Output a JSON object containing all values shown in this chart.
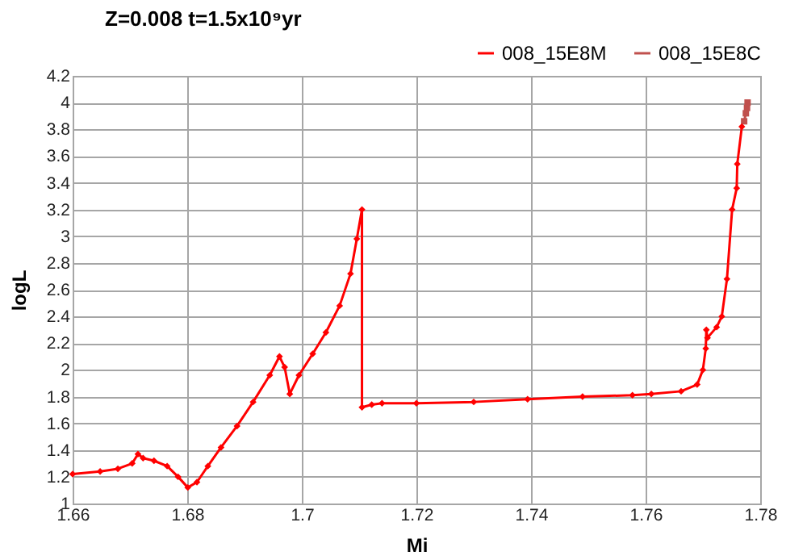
{
  "chart_data": {
    "type": "line",
    "title": "Z=0.008    t=1.5x10⁹yr",
    "xlabel": "Mi",
    "ylabel": "logL",
    "xlim": [
      1.66,
      1.78
    ],
    "xticks": [
      1.66,
      1.68,
      1.7,
      1.72,
      1.74,
      1.76,
      1.78
    ],
    "ylim": [
      1,
      4.2
    ],
    "yticks": [
      1,
      1.2,
      1.4,
      1.6,
      1.8,
      2,
      2.2,
      2.4,
      2.6,
      2.8,
      3,
      3.2,
      3.4,
      3.6,
      3.8,
      4,
      4.2
    ],
    "grid": true,
    "legend": "top right",
    "series": [
      {
        "name": "008_15E8M",
        "color": "#ff0000",
        "marker": "diamond",
        "x": [
          1.66,
          1.6648,
          1.6679,
          1.6704,
          1.6714,
          1.6723,
          1.6742,
          1.6765,
          1.6784,
          1.6801,
          1.6817,
          1.6836,
          1.6859,
          1.6887,
          1.6915,
          1.6944,
          1.6961,
          1.697,
          1.6979,
          1.6995,
          1.7019,
          1.7042,
          1.7066,
          1.7085,
          1.7096,
          1.7105,
          1.7105,
          1.7122,
          1.714,
          1.72,
          1.73,
          1.7394,
          1.749,
          1.7577,
          1.761,
          1.7662,
          1.769,
          1.77,
          1.7705,
          1.7706,
          1.7708,
          1.7724,
          1.7733,
          1.7742,
          1.7751,
          1.7759,
          1.776,
          1.7768
        ],
        "values": [
          1.22,
          1.24,
          1.26,
          1.3,
          1.37,
          1.34,
          1.32,
          1.28,
          1.2,
          1.12,
          1.16,
          1.28,
          1.42,
          1.58,
          1.76,
          1.96,
          2.1,
          2.02,
          1.82,
          1.96,
          2.12,
          2.28,
          2.48,
          2.72,
          2.98,
          3.2,
          1.72,
          1.74,
          1.75,
          1.75,
          1.76,
          1.78,
          1.8,
          1.81,
          1.82,
          1.84,
          1.89,
          2.0,
          2.16,
          2.3,
          2.24,
          2.32,
          2.4,
          2.68,
          3.2,
          3.36,
          3.54,
          3.82
        ]
      },
      {
        "name": "008_15E8C",
        "color": "#c0504d",
        "marker": "square",
        "x": [
          1.7772,
          1.7775,
          1.7777,
          1.7778
        ],
        "values": [
          3.86,
          3.92,
          3.96,
          4.0
        ]
      }
    ]
  }
}
